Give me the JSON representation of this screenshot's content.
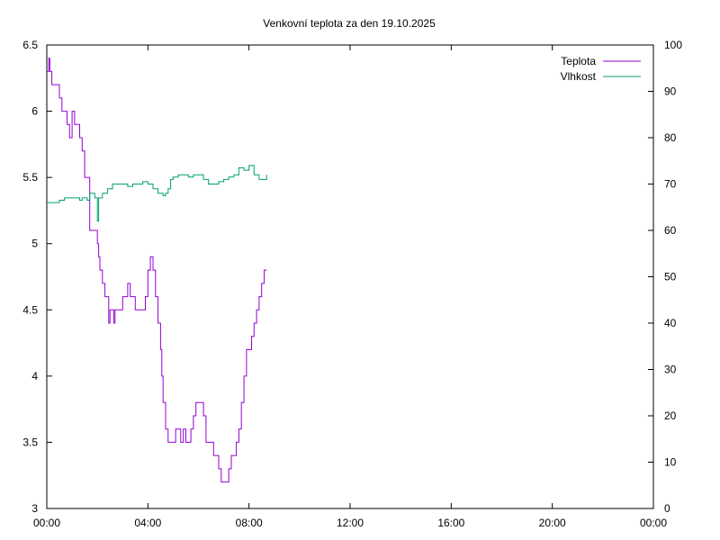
{
  "chart_data": {
    "type": "line",
    "title": "Venkovní teplota za den 19.10.2025",
    "x_tick_labels": [
      "00:00",
      "04:00",
      "08:00",
      "12:00",
      "16:00",
      "20:00",
      "00:00"
    ],
    "x_range_hours": [
      0,
      24
    ],
    "y_left_range": [
      3,
      6.5
    ],
    "y_left_ticks": [
      "3",
      "3.5",
      "4",
      "4.5",
      "5",
      "5.5",
      "6",
      "6.5"
    ],
    "y_right_range": [
      0,
      100
    ],
    "y_right_ticks": [
      "0",
      "10",
      "20",
      "30",
      "40",
      "50",
      "60",
      "70",
      "80",
      "90",
      "100"
    ],
    "grid": false,
    "legend_position": "top-right",
    "series": [
      {
        "name": "Teplota",
        "axis": "left",
        "color": "#9400d3",
        "x_hours": [
          0.0,
          0.08,
          0.12,
          0.2,
          0.45,
          0.5,
          0.6,
          0.8,
          0.9,
          1.0,
          1.1,
          1.2,
          1.3,
          1.4,
          1.5,
          1.7,
          1.8,
          2.0,
          2.05,
          2.1,
          2.2,
          2.3,
          2.45,
          2.5,
          2.65,
          2.7,
          2.9,
          3.0,
          3.1,
          3.2,
          3.3,
          3.4,
          3.5,
          3.6,
          3.7,
          3.8,
          3.9,
          4.0,
          4.1,
          4.2,
          4.3,
          4.4,
          4.5,
          4.55,
          4.6,
          4.7,
          4.8,
          4.9,
          5.0,
          5.1,
          5.2,
          5.3,
          5.4,
          5.5,
          5.6,
          5.7,
          5.8,
          5.9,
          6.0,
          6.1,
          6.2,
          6.3,
          6.5,
          6.6,
          6.7,
          6.8,
          6.9,
          7.0,
          7.1,
          7.2,
          7.3,
          7.4,
          7.5,
          7.6,
          7.7,
          7.8,
          7.9,
          8.0,
          8.1,
          8.2,
          8.3,
          8.4,
          8.5,
          8.6,
          8.7
        ],
        "values": [
          6.3,
          6.4,
          6.3,
          6.2,
          6.2,
          6.1,
          6.0,
          5.9,
          5.8,
          6.0,
          5.9,
          5.9,
          5.8,
          5.7,
          5.5,
          5.1,
          5.1,
          5.0,
          4.9,
          4.8,
          4.7,
          4.6,
          4.4,
          4.5,
          4.4,
          4.5,
          4.5,
          4.6,
          4.6,
          4.7,
          4.6,
          4.6,
          4.5,
          4.5,
          4.5,
          4.5,
          4.6,
          4.8,
          4.9,
          4.8,
          4.6,
          4.4,
          4.2,
          4.0,
          3.8,
          3.6,
          3.5,
          3.5,
          3.5,
          3.6,
          3.6,
          3.5,
          3.6,
          3.5,
          3.5,
          3.6,
          3.7,
          3.8,
          3.8,
          3.8,
          3.7,
          3.5,
          3.5,
          3.4,
          3.4,
          3.3,
          3.2,
          3.2,
          3.2,
          3.3,
          3.4,
          3.4,
          3.5,
          3.6,
          3.8,
          4.0,
          4.2,
          4.2,
          4.3,
          4.4,
          4.5,
          4.6,
          4.7,
          4.8,
          4.8
        ]
      },
      {
        "name": "Vlhkost",
        "axis": "right",
        "color": "#009e73",
        "x_hours": [
          0.0,
          0.2,
          0.5,
          0.7,
          0.9,
          1.1,
          1.3,
          1.4,
          1.5,
          1.6,
          1.7,
          1.8,
          1.9,
          2.0,
          2.05,
          2.2,
          2.4,
          2.6,
          2.8,
          3.0,
          3.2,
          3.4,
          3.6,
          3.8,
          4.0,
          4.2,
          4.4,
          4.6,
          4.7,
          4.8,
          4.9,
          5.0,
          5.2,
          5.4,
          5.6,
          5.8,
          6.0,
          6.2,
          6.4,
          6.6,
          6.8,
          7.0,
          7.2,
          7.4,
          7.6,
          7.8,
          8.0,
          8.2,
          8.4,
          8.6,
          8.7
        ],
        "values": [
          66,
          66,
          66.5,
          67,
          67,
          67,
          66.5,
          67,
          67,
          66.5,
          68,
          68,
          67,
          62,
          67,
          68,
          69,
          70,
          70,
          70,
          69.5,
          70,
          70,
          70.5,
          70,
          69,
          68,
          67.5,
          68,
          69,
          71,
          71.5,
          72,
          72,
          71.5,
          72,
          72,
          71,
          70,
          70,
          70.5,
          71,
          71.5,
          72,
          73.5,
          73,
          74,
          72,
          71,
          71,
          72
        ]
      }
    ]
  }
}
